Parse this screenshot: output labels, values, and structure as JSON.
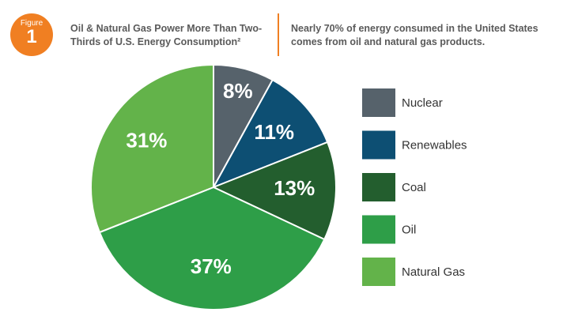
{
  "figure": {
    "label": "Figure",
    "number": "1"
  },
  "chart_data": {
    "type": "pie",
    "title": "Oil & Natural Gas Power More Than Two-Thirds of U.S. Energy Consumption²",
    "subtitle": "Nearly 70% of energy consumed in the United States comes from oil and natural gas products.",
    "categories": [
      "Nuclear",
      "Renewables",
      "Coal",
      "Oil",
      "Natural Gas"
    ],
    "values": [
      8,
      11,
      13,
      37,
      31
    ],
    "value_labels": [
      "8%",
      "11%",
      "13%",
      "37%",
      "31%"
    ],
    "colors": [
      "#56626b",
      "#0d4f73",
      "#235e2e",
      "#2e9e48",
      "#63b34a"
    ],
    "legend": "right"
  }
}
